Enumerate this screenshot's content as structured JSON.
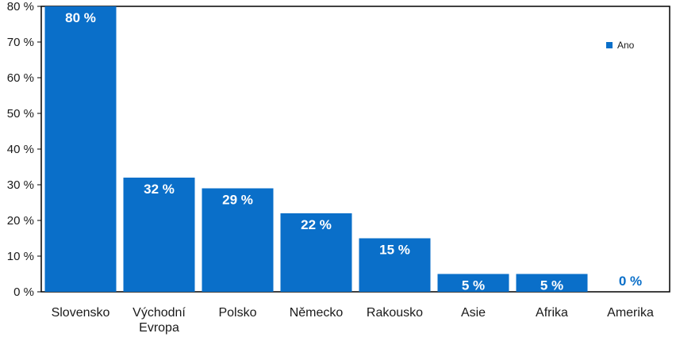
{
  "chart_data": {
    "type": "bar",
    "categories": [
      "Slovensko",
      "Východní Evropa",
      "Polsko",
      "Německo",
      "Rakousko",
      "Asie",
      "Afrika",
      "Amerika"
    ],
    "category_lines": [
      [
        "Slovensko"
      ],
      [
        "Východní",
        "Evropa"
      ],
      [
        "Polsko"
      ],
      [
        "Německo"
      ],
      [
        "Rakousko"
      ],
      [
        "Asie"
      ],
      [
        "Afrika"
      ],
      [
        "Amerika"
      ]
    ],
    "series": [
      {
        "name": "Ano",
        "values": [
          80,
          32,
          29,
          22,
          15,
          5,
          5,
          0
        ],
        "color": "#0a6fc9"
      }
    ],
    "data_labels": [
      "80 %",
      "32 %",
      "29 %",
      "22 %",
      "15 %",
      "5 %",
      "5 %",
      "0 %"
    ],
    "y_ticks": [
      0,
      10,
      20,
      30,
      40,
      50,
      60,
      70,
      80
    ],
    "y_tick_labels": [
      "0 %",
      "10 %",
      "20 %",
      "30 %",
      "40 %",
      "50 %",
      "60 %",
      "70 %",
      "80 %"
    ],
    "ylim": [
      0,
      80
    ],
    "grid": false,
    "legend": {
      "position": "top-right",
      "label": "Ano"
    },
    "title": "",
    "xlabel": "",
    "ylabel": ""
  }
}
